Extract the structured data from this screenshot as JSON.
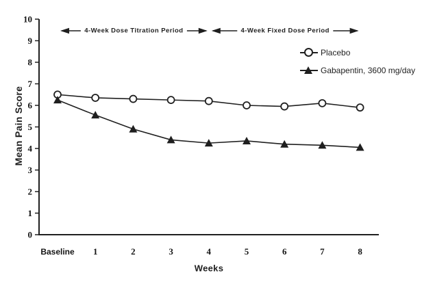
{
  "chart_data": {
    "type": "line",
    "title": "",
    "xlabel": "Weeks",
    "ylabel": "Mean Pain Score",
    "categories": [
      "Baseline",
      "1",
      "2",
      "3",
      "4",
      "5",
      "6",
      "7",
      "8"
    ],
    "ylim": [
      0,
      10
    ],
    "ytick_step": 1,
    "grid": false,
    "legend_position": "upper-right-inside",
    "series": [
      {
        "name": "Placebo",
        "marker": "open-circle",
        "color": "#1f1f1f",
        "values": [
          6.5,
          6.35,
          6.3,
          6.25,
          6.2,
          6.0,
          5.95,
          6.1,
          5.9
        ]
      },
      {
        "name": "Gabapentin, 3600 mg/day",
        "marker": "filled-triangle",
        "color": "#1f1f1f",
        "values": [
          6.25,
          5.55,
          4.9,
          4.4,
          4.25,
          4.35,
          4.2,
          4.15,
          4.05
        ]
      }
    ]
  },
  "annotations": [
    {
      "label": "4-Week Dose Titration Period",
      "from_week": 0,
      "to_week": 4
    },
    {
      "label": "4-Week Fixed Dose Period",
      "from_week": 4,
      "to_week": 8
    }
  ],
  "legend": {
    "items": [
      {
        "label": "Placebo",
        "marker": "open-circle"
      },
      {
        "label": "Gabapentin, 3600 mg/day",
        "marker": "filled-triangle"
      }
    ]
  },
  "colors": {
    "ink": "#1f1f1f",
    "background": "#ffffff"
  }
}
